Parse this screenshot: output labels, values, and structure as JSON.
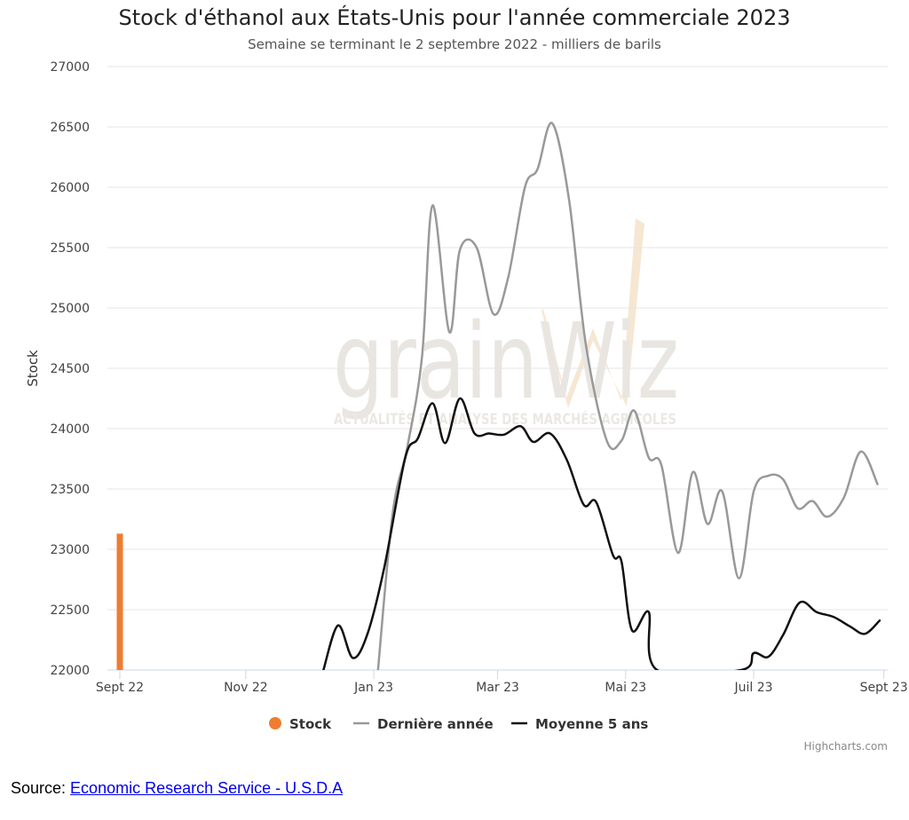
{
  "chart_data": {
    "type": "line",
    "title": "Stock d'éthanol aux États-Unis pour l'année commerciale 2023",
    "subtitle": "Semaine se terminant le 2 septembre 2022 - milliers de barils",
    "ylabel": "Stock",
    "ylim": [
      22000,
      27000
    ],
    "yticks": [
      "27000",
      "26500",
      "26000",
      "25500",
      "25000",
      "24500",
      "24000",
      "23500",
      "23000",
      "22500",
      "22000"
    ],
    "xlim": [
      "2022-09-02",
      "2023-09-02"
    ],
    "xticks": [
      {
        "date": "2022-09-02",
        "label": "Sept 22"
      },
      {
        "date": "2022-11-01",
        "label": "Nov 22"
      },
      {
        "date": "2023-01-01",
        "label": "Jan 23"
      },
      {
        "date": "2023-03-01",
        "label": "Mar 23"
      },
      {
        "date": "2023-05-01",
        "label": "Mai 23"
      },
      {
        "date": "2023-07-01",
        "label": "Juil 23"
      },
      {
        "date": "2023-09-01",
        "label": "Sept 23"
      }
    ],
    "grid": true,
    "legend_position": "bottom-center",
    "series": [
      {
        "name": "Stock",
        "kind": "bar",
        "color": "#ed7d31",
        "points": [
          {
            "x": "2022-09-02",
            "y": 23130
          }
        ]
      },
      {
        "name": "Dernière année",
        "kind": "line",
        "color": "#999999",
        "points": [
          {
            "x": "2023-01-03",
            "y": 22000
          },
          {
            "x": "2023-01-10",
            "y": 23300
          },
          {
            "x": "2023-01-17",
            "y": 23850
          },
          {
            "x": "2023-01-24",
            "y": 24600
          },
          {
            "x": "2023-01-29",
            "y": 25850
          },
          {
            "x": "2023-02-06",
            "y": 24800
          },
          {
            "x": "2023-02-11",
            "y": 25480
          },
          {
            "x": "2023-02-19",
            "y": 25500
          },
          {
            "x": "2023-02-27",
            "y": 24950
          },
          {
            "x": "2023-03-06",
            "y": 25250
          },
          {
            "x": "2023-03-14",
            "y": 26000
          },
          {
            "x": "2023-03-20",
            "y": 26150
          },
          {
            "x": "2023-03-27",
            "y": 26530
          },
          {
            "x": "2023-04-04",
            "y": 25900
          },
          {
            "x": "2023-04-12",
            "y": 24700
          },
          {
            "x": "2023-04-22",
            "y": 23900
          },
          {
            "x": "2023-04-29",
            "y": 23900
          },
          {
            "x": "2023-05-05",
            "y": 24150
          },
          {
            "x": "2023-05-12",
            "y": 23760
          },
          {
            "x": "2023-05-18",
            "y": 23700
          },
          {
            "x": "2023-05-26",
            "y": 22970
          },
          {
            "x": "2023-06-02",
            "y": 23640
          },
          {
            "x": "2023-06-09",
            "y": 23210
          },
          {
            "x": "2023-06-16",
            "y": 23480
          },
          {
            "x": "2023-06-24",
            "y": 22760
          },
          {
            "x": "2023-07-01",
            "y": 23480
          },
          {
            "x": "2023-07-08",
            "y": 23610
          },
          {
            "x": "2023-07-15",
            "y": 23580
          },
          {
            "x": "2023-07-22",
            "y": 23340
          },
          {
            "x": "2023-07-29",
            "y": 23400
          },
          {
            "x": "2023-08-05",
            "y": 23270
          },
          {
            "x": "2023-08-13",
            "y": 23430
          },
          {
            "x": "2023-08-21",
            "y": 23810
          },
          {
            "x": "2023-08-29",
            "y": 23540
          }
        ]
      },
      {
        "name": "Moyenne 5 ans",
        "kind": "line",
        "color": "#111111",
        "points": [
          {
            "x": "2022-12-08",
            "y": 22000
          },
          {
            "x": "2022-12-15",
            "y": 22370
          },
          {
            "x": "2022-12-22",
            "y": 22100
          },
          {
            "x": "2022-12-29",
            "y": 22300
          },
          {
            "x": "2023-01-06",
            "y": 22850
          },
          {
            "x": "2023-01-16",
            "y": 23760
          },
          {
            "x": "2023-01-22",
            "y": 23920
          },
          {
            "x": "2023-01-29",
            "y": 24210
          },
          {
            "x": "2023-02-04",
            "y": 23880
          },
          {
            "x": "2023-02-11",
            "y": 24250
          },
          {
            "x": "2023-02-18",
            "y": 23960
          },
          {
            "x": "2023-02-25",
            "y": 23960
          },
          {
            "x": "2023-03-04",
            "y": 23950
          },
          {
            "x": "2023-03-12",
            "y": 24020
          },
          {
            "x": "2023-03-18",
            "y": 23890
          },
          {
            "x": "2023-03-26",
            "y": 23960
          },
          {
            "x": "2023-04-03",
            "y": 23740
          },
          {
            "x": "2023-04-11",
            "y": 23370
          },
          {
            "x": "2023-04-17",
            "y": 23390
          },
          {
            "x": "2023-04-25",
            "y": 22950
          },
          {
            "x": "2023-04-29",
            "y": 22900
          },
          {
            "x": "2023-05-04",
            "y": 22330
          },
          {
            "x": "2023-05-12",
            "y": 22480
          },
          {
            "x": "2023-05-16",
            "y": 22000
          },
          {
            "x": "2023-06-25",
            "y": 22000
          },
          {
            "x": "2023-07-01",
            "y": 22140
          },
          {
            "x": "2023-07-08",
            "y": 22110
          },
          {
            "x": "2023-07-15",
            "y": 22290
          },
          {
            "x": "2023-07-23",
            "y": 22560
          },
          {
            "x": "2023-07-31",
            "y": 22480
          },
          {
            "x": "2023-08-08",
            "y": 22440
          },
          {
            "x": "2023-08-16",
            "y": 22360
          },
          {
            "x": "2023-08-23",
            "y": 22300
          },
          {
            "x": "2023-08-30",
            "y": 22410
          }
        ]
      }
    ],
    "watermark": {
      "big": "grainWiz",
      "small": "ACTUALITÉS ET ANALYSE DES MARCHÉS AGRICOLES"
    },
    "credits": "Highcharts.com"
  },
  "source": {
    "prefix": "Source: ",
    "link_text": "Economic Research Service - U.S.D.A"
  }
}
